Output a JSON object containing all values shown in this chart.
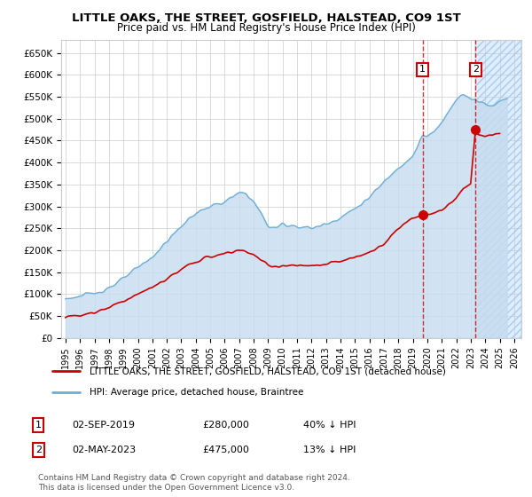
{
  "title": "LITTLE OAKS, THE STREET, GOSFIELD, HALSTEAD, CO9 1ST",
  "subtitle": "Price paid vs. HM Land Registry's House Price Index (HPI)",
  "ylim": [
    0,
    680000
  ],
  "xlim_start": 1994.7,
  "xlim_end": 2026.5,
  "yticks": [
    0,
    50000,
    100000,
    150000,
    200000,
    250000,
    300000,
    350000,
    400000,
    450000,
    500000,
    550000,
    600000,
    650000
  ],
  "ytick_labels": [
    "£0",
    "£50K",
    "£100K",
    "£150K",
    "£200K",
    "£250K",
    "£300K",
    "£350K",
    "£400K",
    "£450K",
    "£500K",
    "£550K",
    "£600K",
    "£650K"
  ],
  "xticks": [
    1995,
    1996,
    1997,
    1998,
    1999,
    2000,
    2001,
    2002,
    2003,
    2004,
    2005,
    2006,
    2007,
    2008,
    2009,
    2010,
    2011,
    2012,
    2013,
    2014,
    2015,
    2016,
    2017,
    2018,
    2019,
    2020,
    2021,
    2022,
    2023,
    2024,
    2025,
    2026
  ],
  "transaction1_x": 2019.67,
  "transaction1_y": 280000,
  "transaction1_label": "1",
  "transaction1_date": "02-SEP-2019",
  "transaction1_price": "£280,000",
  "transaction1_hpi": "40% ↓ HPI",
  "transaction2_x": 2023.33,
  "transaction2_y": 475000,
  "transaction2_label": "2",
  "transaction2_date": "02-MAY-2023",
  "transaction2_price": "£475,000",
  "transaction2_hpi": "13% ↓ HPI",
  "hpi_color": "#6baed6",
  "hpi_fill_color": "#c6dbef",
  "price_color": "#cc0000",
  "grid_color": "#cccccc",
  "bg_color": "#ffffff",
  "shade_color": "#ddeeff",
  "legend_line1": "LITTLE OAKS, THE STREET, GOSFIELD, HALSTEAD, CO9 1ST (detached house)",
  "legend_line2": "HPI: Average price, detached house, Braintree",
  "footer1": "Contains HM Land Registry data © Crown copyright and database right 2024.",
  "footer2": "This data is licensed under the Open Government Licence v3.0."
}
